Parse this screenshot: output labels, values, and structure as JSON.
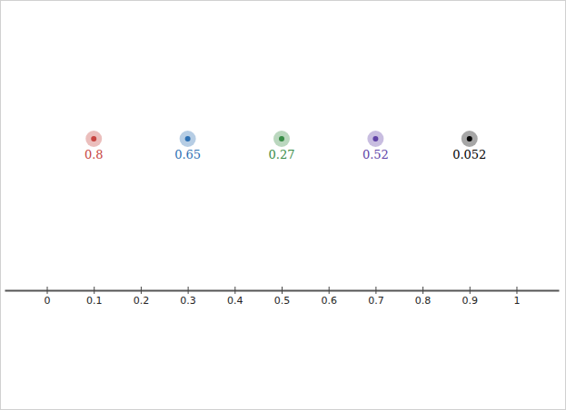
{
  "chart_data": {
    "type": "scatter",
    "x": [
      0.1,
      0.3,
      0.5,
      0.7,
      0.9
    ],
    "labels": [
      0.8,
      0.65,
      0.27,
      0.52,
      0.052
    ],
    "colors": [
      "#c74440",
      "#2d70b3",
      "#388c46",
      "#6042a6",
      "#000000"
    ],
    "xlim": [
      -0.09,
      1.09
    ],
    "xticks": [
      0,
      0.1,
      0.2,
      0.3,
      0.4,
      0.5,
      0.6,
      0.7,
      0.8,
      0.9,
      1
    ],
    "tick_labels": "x"
  }
}
